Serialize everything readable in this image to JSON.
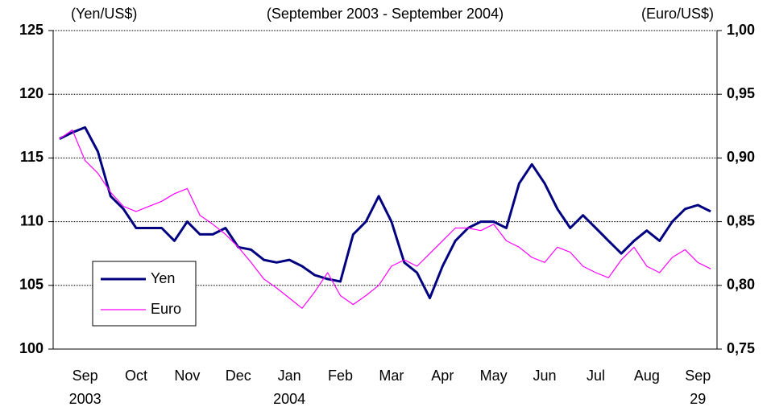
{
  "chart_data": {
    "type": "line",
    "title": "(September 2003 - September 2004)",
    "y_axis_label": "(Yen/US$)",
    "y2_axis_label": "(Euro/US$)",
    "categories": [
      null,
      null,
      "Sep",
      null,
      null,
      null,
      "Oct",
      null,
      null,
      null,
      "Nov",
      null,
      null,
      null,
      "Dec",
      null,
      null,
      null,
      "Jan",
      null,
      null,
      null,
      "Feb",
      null,
      null,
      null,
      "Mar",
      null,
      null,
      null,
      "Apr",
      null,
      null,
      null,
      "May",
      null,
      null,
      null,
      "Jun",
      null,
      null,
      null,
      "Jul",
      null,
      null,
      null,
      "Aug",
      null,
      null,
      null,
      "Sep",
      null
    ],
    "category_sublabels": [
      null,
      null,
      "2003",
      null,
      null,
      null,
      null,
      null,
      null,
      null,
      null,
      null,
      null,
      null,
      null,
      null,
      null,
      null,
      "2004",
      null,
      null,
      null,
      null,
      null,
      null,
      null,
      null,
      null,
      null,
      null,
      null,
      null,
      null,
      null,
      null,
      null,
      null,
      null,
      null,
      null,
      null,
      null,
      null,
      null,
      null,
      null,
      null,
      null,
      null,
      null,
      "29",
      null
    ],
    "series": [
      {
        "name": "Yen",
        "color": "#000080",
        "axis": "y",
        "values": [
          116.5,
          117.0,
          117.4,
          115.5,
          112.0,
          111.0,
          109.5,
          109.5,
          109.5,
          108.5,
          110.0,
          109.0,
          109.0,
          109.5,
          108.0,
          107.8,
          107.0,
          106.8,
          107.0,
          106.5,
          105.8,
          105.5,
          105.3,
          109.0,
          110.0,
          112.0,
          110.0,
          106.8,
          106.0,
          104.0,
          106.5,
          108.5,
          109.5,
          110.0,
          110.0,
          109.5,
          113.0,
          114.5,
          113.0,
          111.0,
          109.5,
          110.5,
          109.5,
          108.5,
          107.5,
          108.5,
          109.3,
          108.5,
          110.0,
          111.0,
          111.3,
          110.8
        ]
      },
      {
        "name": "Euro",
        "color": "#ff00ff",
        "axis": "y2",
        "values": [
          0.915,
          0.922,
          0.898,
          0.888,
          0.873,
          0.862,
          0.858,
          0.862,
          0.866,
          0.872,
          0.876,
          0.855,
          0.848,
          0.84,
          0.83,
          0.818,
          0.805,
          0.798,
          0.79,
          0.782,
          0.795,
          0.81,
          0.792,
          0.785,
          0.792,
          0.8,
          0.815,
          0.82,
          0.815,
          0.825,
          0.835,
          0.845,
          0.845,
          0.843,
          0.848,
          0.835,
          0.83,
          0.822,
          0.818,
          0.83,
          0.826,
          0.815,
          0.81,
          0.806,
          0.82,
          0.83,
          0.815,
          0.81,
          0.822,
          0.828,
          0.818,
          0.813
        ]
      }
    ],
    "ylim": [
      100,
      125
    ],
    "yticks": [
      100,
      105,
      110,
      115,
      120,
      125
    ],
    "y2lim": [
      0.75,
      1.0
    ],
    "y2ticks": [
      {
        "value": 0.75,
        "label": "0,75"
      },
      {
        "value": 0.8,
        "label": "0,80"
      },
      {
        "value": 0.85,
        "label": "0,85"
      },
      {
        "value": 0.9,
        "label": "0,90"
      },
      {
        "value": 0.95,
        "label": "0,95"
      },
      {
        "value": 1.0,
        "label": "1,00"
      }
    ],
    "grid": true,
    "legend": "lower-left"
  }
}
